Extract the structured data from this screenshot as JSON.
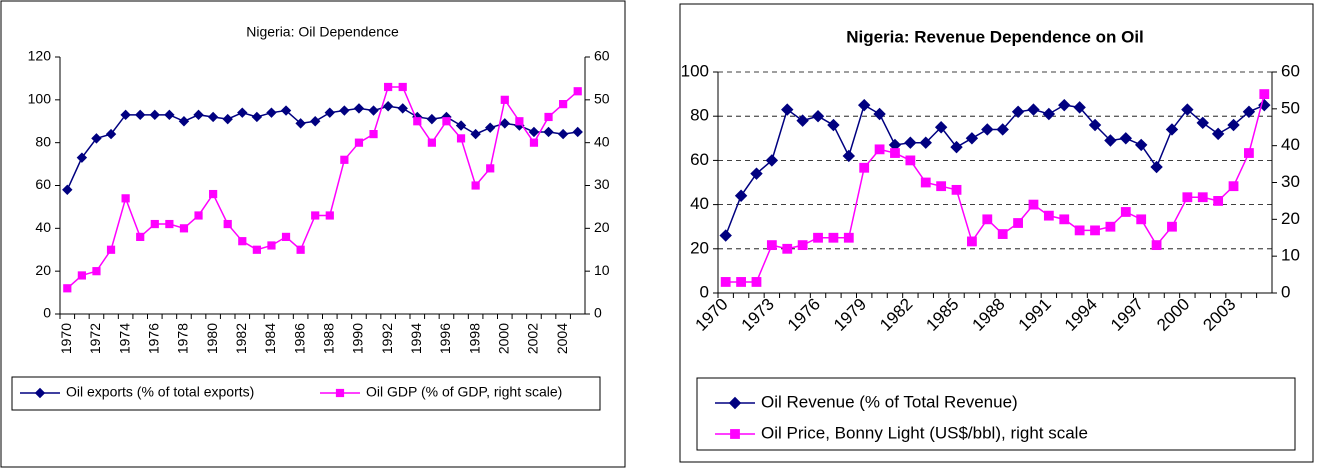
{
  "chart_data": [
    {
      "type": "line",
      "title": "Nigeria: Oil Dependence",
      "categories": [
        "1970",
        null,
        "1972",
        null,
        "1974",
        null,
        "1976",
        null,
        "1978",
        null,
        "1980",
        null,
        "1982",
        null,
        "1984",
        null,
        "1986",
        null,
        "1988",
        null,
        "1990",
        null,
        "1992",
        null,
        "1994",
        null,
        "1996",
        null,
        "1998",
        null,
        "2000",
        null,
        "2002",
        null,
        "2004",
        null
      ],
      "series": [
        {
          "name": "Oil exports (% of total exports)",
          "color": "#000080",
          "marker": "diamond",
          "axis": "y",
          "values": [
            58,
            73,
            82,
            84,
            93,
            93,
            93,
            93,
            90,
            93,
            92,
            91,
            94,
            92,
            94,
            95,
            89,
            90,
            94,
            95,
            96,
            95,
            97,
            96,
            92,
            91,
            92,
            88,
            84,
            87,
            89,
            88,
            85,
            85,
            84,
            85
          ]
        },
        {
          "name": "Oil GDP (% of GDP, right scale)",
          "color": "#ff00ff",
          "marker": "square",
          "axis": "y2",
          "values": [
            6,
            9,
            10,
            15,
            27,
            18,
            21,
            21,
            20,
            23,
            28,
            21,
            17,
            15,
            16,
            18,
            15,
            23,
            23,
            36,
            40,
            42,
            53,
            53,
            45,
            40,
            45,
            41,
            30,
            34,
            50,
            45,
            40,
            46,
            49,
            52
          ]
        }
      ],
      "ylim": [
        0,
        120
      ],
      "yticks": [
        0,
        20,
        40,
        60,
        80,
        100,
        120
      ],
      "y2lim": [
        0,
        60
      ],
      "y2ticks": [
        0,
        10,
        20,
        30,
        40,
        50,
        60
      ],
      "grid": false,
      "legend": "bottom"
    },
    {
      "type": "line",
      "title": "Nigeria: Revenue Dependence on Oil",
      "categories": [
        "1970",
        null,
        null,
        "1973",
        null,
        null,
        "1976",
        null,
        null,
        "1979",
        null,
        null,
        "1982",
        null,
        null,
        "1985",
        null,
        null,
        "1988",
        null,
        null,
        "1991",
        null,
        null,
        "1994",
        null,
        null,
        "1997",
        null,
        null,
        "2000",
        null,
        null,
        "2003",
        null,
        null
      ],
      "series": [
        {
          "name": "Oil Revenue (% of Total Revenue)",
          "color": "#000080",
          "marker": "diamond",
          "axis": "y",
          "values": [
            26,
            44,
            54,
            60,
            83,
            78,
            80,
            76,
            62,
            85,
            81,
            67,
            68,
            68,
            75,
            66,
            70,
            74,
            74,
            82,
            83,
            81,
            85,
            84,
            76,
            69,
            70,
            67,
            57,
            74,
            83,
            77,
            72,
            76,
            82,
            85
          ]
        },
        {
          "name": "Oil Price, Bonny Light (US$/bbl), right scale",
          "color": "#ff00ff",
          "marker": "square",
          "axis": "y2",
          "values": [
            3,
            3,
            3,
            13,
            12,
            13,
            15,
            15,
            15,
            34,
            39,
            38,
            36,
            30,
            29,
            28,
            14,
            20,
            16,
            19,
            24,
            21,
            20,
            17,
            17,
            18,
            22,
            20,
            13,
            18,
            26,
            26,
            25,
            29,
            38,
            54
          ]
        }
      ],
      "ylim": [
        0,
        100
      ],
      "yticks": [
        0,
        20,
        40,
        60,
        80,
        100
      ],
      "y2lim": [
        0,
        60
      ],
      "y2ticks": [
        0,
        10,
        20,
        30,
        40,
        50,
        60
      ],
      "grid": true,
      "legend": "bottom"
    }
  ]
}
